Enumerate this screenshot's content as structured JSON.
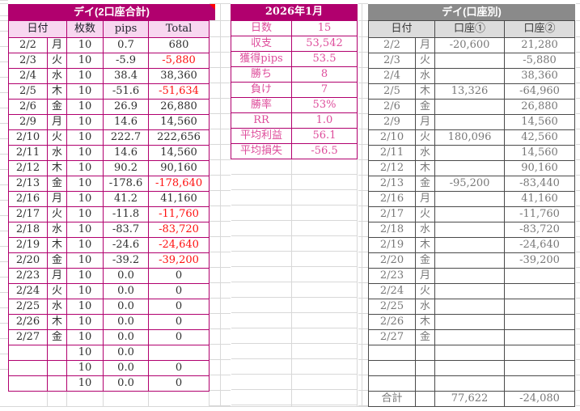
{
  "colors": {
    "accent_magenta": "#B1006E",
    "light_pink": "#F8D7F0",
    "pink_text": "#DE4D9B",
    "negative_red": "#FF1111",
    "dark_text": "#303030",
    "header_navy": "#23232E",
    "gray_header": "#8A8A8A",
    "gray_light": "#DCDCDC",
    "gray_border": "#4A4A4A",
    "gray_text": "#787878",
    "gridline": "#D8D8D8"
  },
  "left_table": {
    "title": "デイ(2口座合計)",
    "columns": {
      "date": "日付",
      "lots": "枚数",
      "pips": "pips",
      "total": "Total"
    },
    "rows": [
      {
        "date": "2/2",
        "day": "月",
        "lots": "10",
        "pips": "0.7",
        "total": "680"
      },
      {
        "date": "2/3",
        "day": "火",
        "lots": "10",
        "pips": "-5.9",
        "total": "-5,880"
      },
      {
        "date": "2/4",
        "day": "水",
        "lots": "10",
        "pips": "38.4",
        "total": "38,360"
      },
      {
        "date": "2/5",
        "day": "木",
        "lots": "10",
        "pips": "-51.6",
        "total": "-51,634"
      },
      {
        "date": "2/6",
        "day": "金",
        "lots": "10",
        "pips": "26.9",
        "total": "26,880"
      },
      {
        "date": "2/9",
        "day": "月",
        "lots": "10",
        "pips": "14.6",
        "total": "14,560"
      },
      {
        "date": "2/10",
        "day": "火",
        "lots": "10",
        "pips": "222.7",
        "total": "222,656"
      },
      {
        "date": "2/11",
        "day": "水",
        "lots": "10",
        "pips": "14.6",
        "total": "14,560"
      },
      {
        "date": "2/12",
        "day": "木",
        "lots": "10",
        "pips": "90.2",
        "total": "90,160"
      },
      {
        "date": "2/13",
        "day": "金",
        "lots": "10",
        "pips": "-178.6",
        "total": "-178,640"
      },
      {
        "date": "2/16",
        "day": "月",
        "lots": "10",
        "pips": "41.2",
        "total": "41,160"
      },
      {
        "date": "2/17",
        "day": "火",
        "lots": "10",
        "pips": "-11.8",
        "total": "-11,760"
      },
      {
        "date": "2/18",
        "day": "水",
        "lots": "10",
        "pips": "-83.7",
        "total": "-83,720"
      },
      {
        "date": "2/19",
        "day": "木",
        "lots": "10",
        "pips": "-24.6",
        "total": "-24,640"
      },
      {
        "date": "2/20",
        "day": "金",
        "lots": "10",
        "pips": "-39.2",
        "total": "-39,200"
      },
      {
        "date": "2/23",
        "day": "月",
        "lots": "10",
        "pips": "0.0",
        "total": "0"
      },
      {
        "date": "2/24",
        "day": "火",
        "lots": "10",
        "pips": "0.0",
        "total": "0"
      },
      {
        "date": "2/25",
        "day": "水",
        "lots": "10",
        "pips": "0.0",
        "total": "0"
      },
      {
        "date": "2/26",
        "day": "木",
        "lots": "10",
        "pips": "0.0",
        "total": "0"
      },
      {
        "date": "2/27",
        "day": "金",
        "lots": "10",
        "pips": "0.0",
        "total": "0"
      },
      {
        "date": "",
        "day": "",
        "lots": "10",
        "pips": "0.0",
        "total": ""
      },
      {
        "date": "",
        "day": "",
        "lots": "10",
        "pips": "0.0",
        "total": "0"
      },
      {
        "date": "",
        "day": "",
        "lots": "10",
        "pips": "0.0",
        "total": "0"
      }
    ]
  },
  "summary_table": {
    "title": "2026年1月",
    "rows": [
      {
        "label": "日数",
        "value": "15"
      },
      {
        "label": "収支",
        "value": "53,542"
      },
      {
        "label": "獲得pips",
        "value": "53.5"
      },
      {
        "label": "勝ち",
        "value": "8"
      },
      {
        "label": "負け",
        "value": "7"
      },
      {
        "label": "勝率",
        "value": "53%"
      },
      {
        "label": "RR",
        "value": "1.0"
      },
      {
        "label": "平均利益",
        "value": "56.1"
      },
      {
        "label": "平均損失",
        "value": "-56.5"
      }
    ]
  },
  "right_table": {
    "title": "デイ(口座別)",
    "columns": {
      "date": "日付",
      "acct1": "口座①",
      "acct2": "口座②"
    },
    "rows": [
      {
        "date": "2/2",
        "day": "月",
        "acct1": "-20,600",
        "acct2": "21,280"
      },
      {
        "date": "2/3",
        "day": "火",
        "acct1": "",
        "acct2": "-5,880"
      },
      {
        "date": "2/4",
        "day": "水",
        "acct1": "",
        "acct2": "38,360"
      },
      {
        "date": "2/5",
        "day": "木",
        "acct1": "13,326",
        "acct2": "-64,960"
      },
      {
        "date": "2/6",
        "day": "金",
        "acct1": "",
        "acct2": "26,880"
      },
      {
        "date": "2/9",
        "day": "月",
        "acct1": "",
        "acct2": "14,560"
      },
      {
        "date": "2/10",
        "day": "火",
        "acct1": "180,096",
        "acct2": "42,560"
      },
      {
        "date": "2/11",
        "day": "水",
        "acct1": "",
        "acct2": "14,560"
      },
      {
        "date": "2/12",
        "day": "木",
        "acct1": "",
        "acct2": "90,160"
      },
      {
        "date": "2/13",
        "day": "金",
        "acct1": "-95,200",
        "acct2": "-83,440"
      },
      {
        "date": "2/16",
        "day": "月",
        "acct1": "",
        "acct2": "41,160"
      },
      {
        "date": "2/17",
        "day": "火",
        "acct1": "",
        "acct2": "-11,760"
      },
      {
        "date": "2/18",
        "day": "水",
        "acct1": "",
        "acct2": "-83,720"
      },
      {
        "date": "2/19",
        "day": "木",
        "acct1": "",
        "acct2": "-24,640"
      },
      {
        "date": "2/20",
        "day": "金",
        "acct1": "",
        "acct2": "-39,200"
      },
      {
        "date": "2/23",
        "day": "月",
        "acct1": "",
        "acct2": ""
      },
      {
        "date": "2/24",
        "day": "火",
        "acct1": "",
        "acct2": ""
      },
      {
        "date": "2/25",
        "day": "水",
        "acct1": "",
        "acct2": ""
      },
      {
        "date": "2/26",
        "day": "木",
        "acct1": "",
        "acct2": ""
      },
      {
        "date": "2/27",
        "day": "金",
        "acct1": "",
        "acct2": ""
      },
      {
        "date": "",
        "day": "",
        "acct1": "",
        "acct2": ""
      },
      {
        "date": "",
        "day": "",
        "acct1": "",
        "acct2": ""
      },
      {
        "date": "",
        "day": "",
        "acct1": "",
        "acct2": ""
      }
    ],
    "total_row": {
      "label": "合計",
      "day": "",
      "acct1": "77,622",
      "acct2": "-24,080"
    }
  }
}
